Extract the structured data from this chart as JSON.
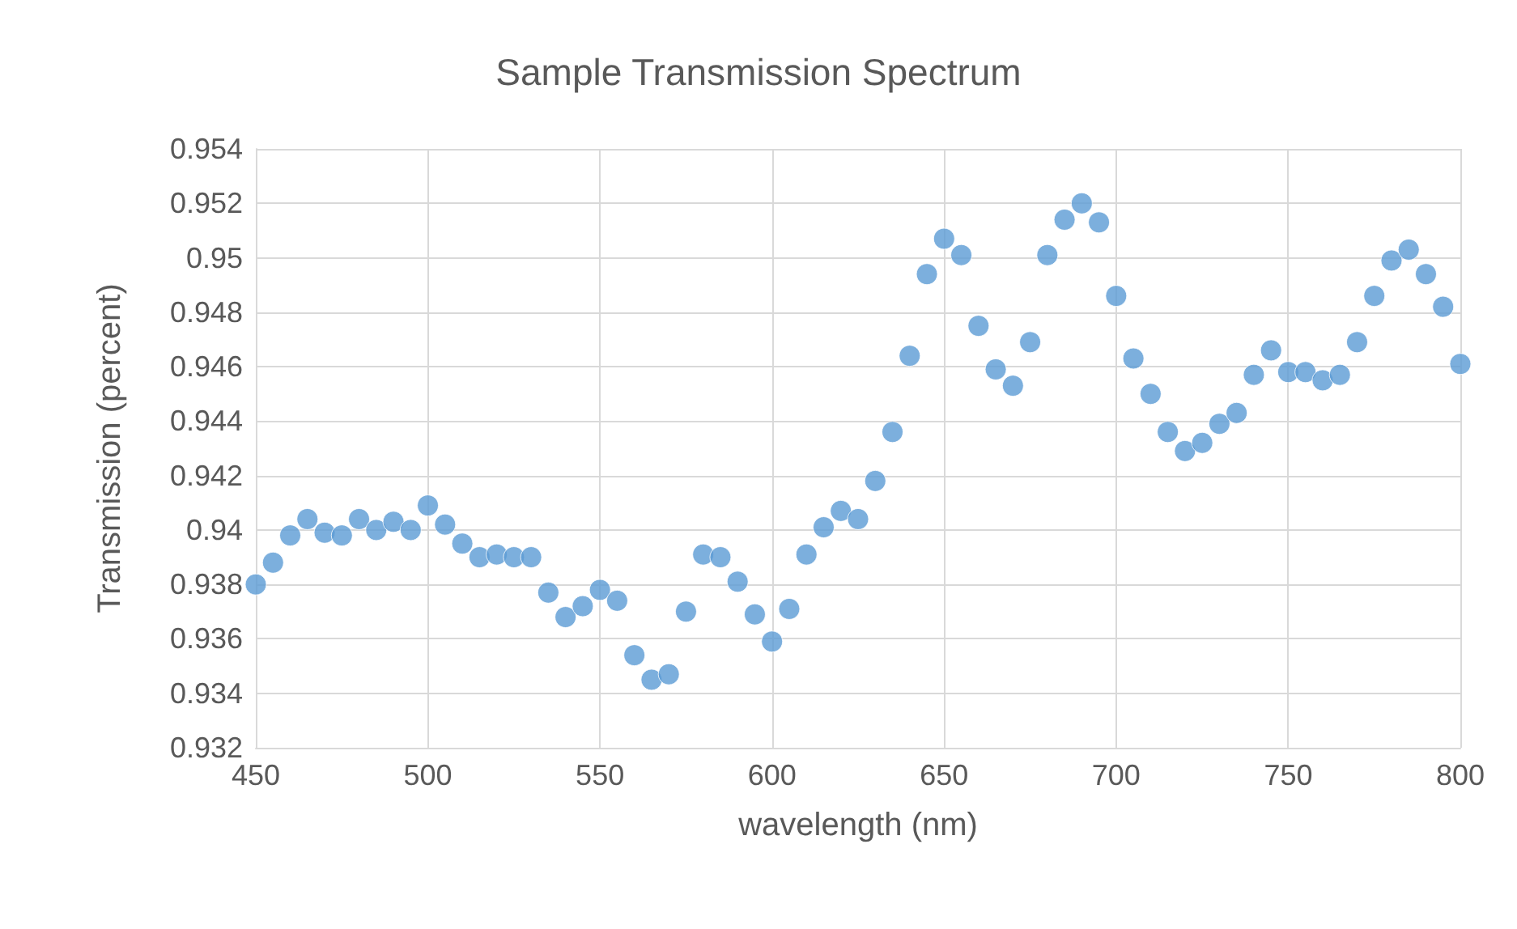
{
  "chart_data": {
    "type": "scatter",
    "title": "Sample Transmission Spectrum",
    "xlabel": "wavelength (nm)",
    "ylabel": "Transmission (percent)",
    "x": [
      450,
      455,
      460,
      465,
      470,
      475,
      480,
      485,
      490,
      495,
      500,
      505,
      510,
      515,
      520,
      525,
      530,
      535,
      540,
      545,
      550,
      555,
      560,
      565,
      570,
      575,
      580,
      585,
      590,
      595,
      600,
      605,
      610,
      615,
      620,
      625,
      630,
      635,
      640,
      645,
      650,
      655,
      660,
      665,
      670,
      675,
      680,
      685,
      690,
      695,
      700,
      705,
      710,
      715,
      720,
      725,
      730,
      735,
      740,
      745,
      750,
      755,
      760,
      765,
      770,
      775,
      780,
      785,
      790,
      795,
      800
    ],
    "series": [
      {
        "color": "#5b9bd5",
        "values": [
          0.938,
          0.9388,
          0.9398,
          0.9404,
          0.9399,
          0.9398,
          0.9404,
          0.94,
          0.9403,
          0.94,
          0.9409,
          0.9402,
          0.9395,
          0.939,
          0.9391,
          0.939,
          0.939,
          0.9377,
          0.9368,
          0.9372,
          0.9378,
          0.9374,
          0.9354,
          0.9345,
          0.9347,
          0.937,
          0.9391,
          0.939,
          0.9381,
          0.9369,
          0.9359,
          0.9371,
          0.9391,
          0.9401,
          0.9407,
          0.9404,
          0.9418,
          0.9436,
          0.9464,
          0.9494,
          0.9507,
          0.9501,
          0.9475,
          0.9459,
          0.9453,
          0.9469,
          0.9501,
          0.9514,
          0.952,
          0.9513,
          0.9486,
          0.9463,
          0.945,
          0.9436,
          0.9429,
          0.9432,
          0.9439,
          0.9443,
          0.9457,
          0.9466,
          0.9458,
          0.9458,
          0.9455,
          0.9457,
          0.9469,
          0.9486,
          0.9499,
          0.9503,
          0.9494,
          0.9482,
          0.9461
        ]
      }
    ],
    "xlim": [
      450,
      800
    ],
    "xticks": [
      450,
      500,
      550,
      600,
      650,
      700,
      750,
      800
    ],
    "ylim": [
      0.932,
      0.954
    ],
    "yticks": [
      0.932,
      0.934,
      0.936,
      0.938,
      0.94,
      0.942,
      0.944,
      0.946,
      0.948,
      0.95,
      0.952,
      0.954
    ],
    "grid": true,
    "marker": "circle"
  }
}
